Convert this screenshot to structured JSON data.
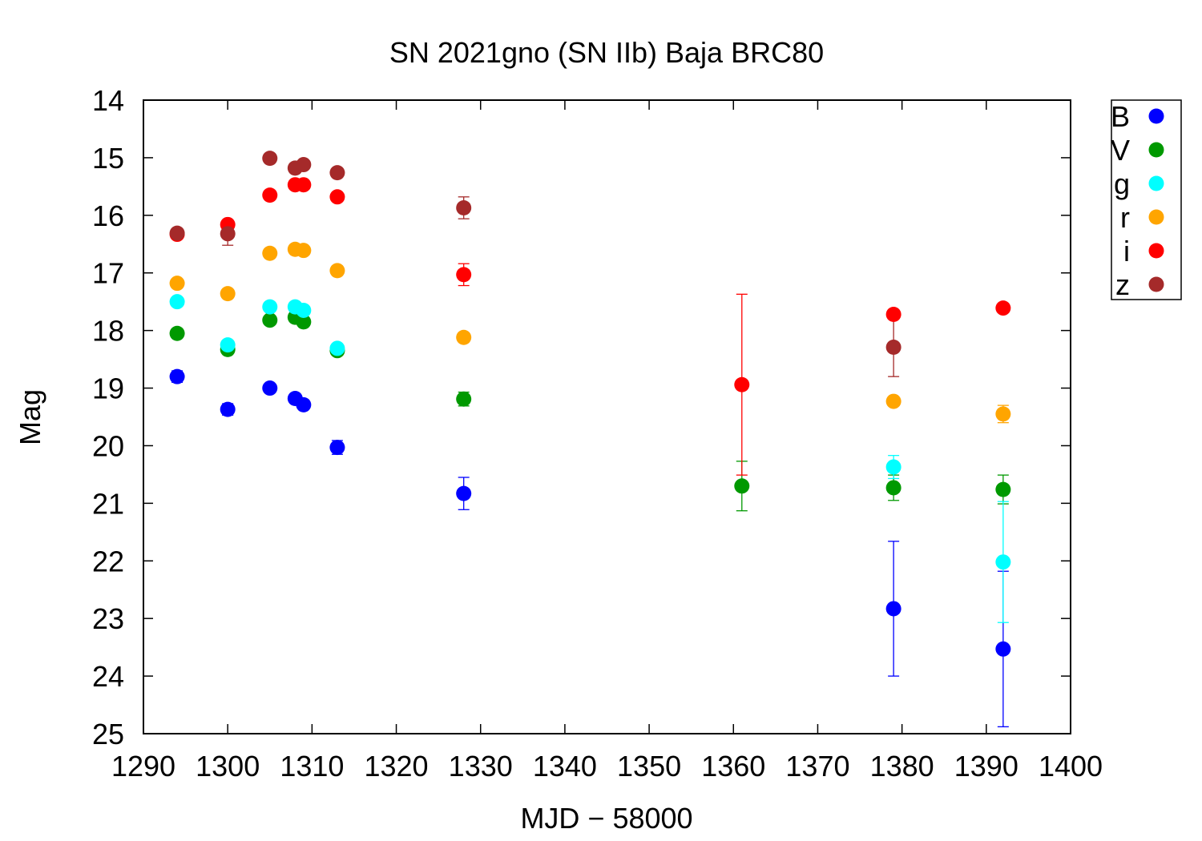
{
  "chart_data": {
    "type": "scatter",
    "title": "SN 2021gno (SN IIb) Baja BRC80",
    "xlabel": "MJD − 58000",
    "ylabel": "Mag",
    "xlim": [
      1290,
      1400
    ],
    "ylim": [
      25,
      14
    ],
    "y_inverted": true,
    "x_ticks": [
      1290,
      1300,
      1310,
      1320,
      1330,
      1340,
      1350,
      1360,
      1370,
      1380,
      1390,
      1400
    ],
    "y_ticks": [
      14,
      15,
      16,
      17,
      18,
      19,
      20,
      21,
      22,
      23,
      24,
      25
    ],
    "grid": false,
    "legend_position": "outside-top-right",
    "series": [
      {
        "name": "B",
        "color": "#0000ff",
        "points": [
          {
            "x": 1294,
            "y": 18.8,
            "err": 0.1
          },
          {
            "x": 1300,
            "y": 19.37,
            "err": 0.1
          },
          {
            "x": 1305,
            "y": 19.0,
            "err": 0.05
          },
          {
            "x": 1308,
            "y": 19.18,
            "err": 0.05
          },
          {
            "x": 1309,
            "y": 19.29,
            "err": 0.05
          },
          {
            "x": 1313,
            "y": 20.03,
            "err": 0.12
          },
          {
            "x": 1328,
            "y": 20.83,
            "err": 0.28
          },
          {
            "x": 1379,
            "y": 22.83,
            "err": 1.17
          },
          {
            "x": 1392,
            "y": 23.53,
            "err": 1.35
          }
        ]
      },
      {
        "name": "V",
        "color": "#009900",
        "points": [
          {
            "x": 1294,
            "y": 18.05,
            "err": 0.04
          },
          {
            "x": 1300,
            "y": 18.33,
            "err": 0.04
          },
          {
            "x": 1305,
            "y": 17.82,
            "err": 0.04
          },
          {
            "x": 1308,
            "y": 17.77,
            "err": 0.04
          },
          {
            "x": 1309,
            "y": 17.85,
            "err": 0.04
          },
          {
            "x": 1313,
            "y": 18.35,
            "err": 0.04
          },
          {
            "x": 1328,
            "y": 19.19,
            "err": 0.12
          },
          {
            "x": 1361,
            "y": 20.7,
            "err": 0.43
          },
          {
            "x": 1379,
            "y": 20.73,
            "err": 0.22
          },
          {
            "x": 1392,
            "y": 20.76,
            "err": 0.25
          }
        ]
      },
      {
        "name": "g",
        "color": "#00ffff",
        "points": [
          {
            "x": 1294,
            "y": 17.5,
            "err": 0.03
          },
          {
            "x": 1300,
            "y": 18.25,
            "err": 0.03
          },
          {
            "x": 1305,
            "y": 17.59,
            "err": 0.03
          },
          {
            "x": 1308,
            "y": 17.59,
            "err": 0.03
          },
          {
            "x": 1309,
            "y": 17.65,
            "err": 0.03
          },
          {
            "x": 1313,
            "y": 18.31,
            "err": 0.03
          },
          {
            "x": 1379,
            "y": 20.37,
            "err": 0.2
          },
          {
            "x": 1392,
            "y": 22.02,
            "err": 1.05
          }
        ]
      },
      {
        "name": "r",
        "color": "#ffa500",
        "points": [
          {
            "x": 1294,
            "y": 17.18,
            "err": 0.03
          },
          {
            "x": 1300,
            "y": 17.36,
            "err": 0.03
          },
          {
            "x": 1305,
            "y": 16.66,
            "err": 0.03
          },
          {
            "x": 1308,
            "y": 16.59,
            "err": 0.03
          },
          {
            "x": 1309,
            "y": 16.61,
            "err": 0.03
          },
          {
            "x": 1313,
            "y": 16.96,
            "err": 0.03
          },
          {
            "x": 1328,
            "y": 18.12,
            "err": 0.08
          },
          {
            "x": 1379,
            "y": 19.23,
            "err": 0.08
          },
          {
            "x": 1392,
            "y": 19.45,
            "err": 0.15
          }
        ]
      },
      {
        "name": "i",
        "color": "#ff0000",
        "points": [
          {
            "x": 1294,
            "y": 16.33,
            "err": 0.03
          },
          {
            "x": 1300,
            "y": 16.16,
            "err": 0.03
          },
          {
            "x": 1305,
            "y": 15.65,
            "err": 0.03
          },
          {
            "x": 1308,
            "y": 15.47,
            "err": 0.03
          },
          {
            "x": 1309,
            "y": 15.47,
            "err": 0.03
          },
          {
            "x": 1313,
            "y": 15.68,
            "err": 0.03
          },
          {
            "x": 1328,
            "y": 17.03,
            "err": 0.19
          },
          {
            "x": 1361,
            "y": 18.94,
            "err": 1.57
          },
          {
            "x": 1379,
            "y": 17.72,
            "err": 0.05
          },
          {
            "x": 1392,
            "y": 17.61,
            "err": 0.05
          }
        ]
      },
      {
        "name": "z",
        "color": "#a52a2a",
        "points": [
          {
            "x": 1294,
            "y": 16.31,
            "err": 0.04
          },
          {
            "x": 1300,
            "y": 16.32,
            "err": 0.2
          },
          {
            "x": 1305,
            "y": 15.01,
            "err": 0.04
          },
          {
            "x": 1308,
            "y": 15.18,
            "err": 0.04
          },
          {
            "x": 1309,
            "y": 15.12,
            "err": 0.04
          },
          {
            "x": 1313,
            "y": 15.26,
            "err": 0.04
          },
          {
            "x": 1328,
            "y": 15.87,
            "err": 0.19
          },
          {
            "x": 1379,
            "y": 18.29,
            "err": 0.51
          }
        ]
      }
    ]
  }
}
